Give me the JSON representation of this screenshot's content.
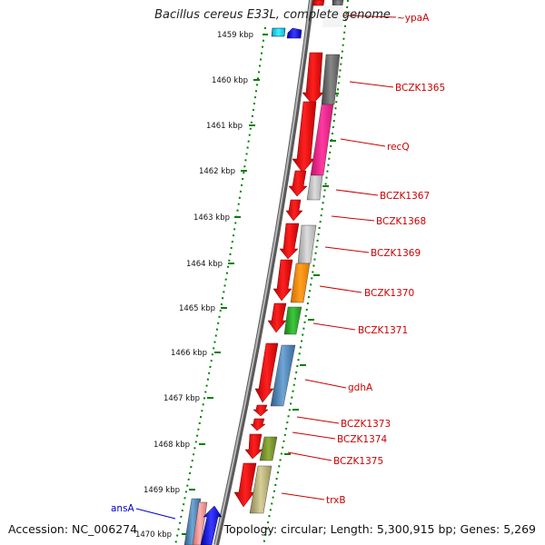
{
  "title": "Bacillus cereus E33L, complete genome",
  "accession": "Accession: NC_006274",
  "topology": "Topology: circular; Length: 5,300,915 bp; Genes: 5,269",
  "kbp_ticks": [
    "1459 kbp",
    "1460 kbp",
    "1461 kbp",
    "1462 kbp",
    "1463 kbp",
    "1464 kbp",
    "1465 kbp",
    "1466 kbp",
    "1467 kbp",
    "1468 kbp",
    "1469 kbp",
    "1470 kbp"
  ],
  "gene_labels": [
    "~ypaA",
    "BCZK1365",
    "recQ",
    "BCZK1367",
    "BCZK1368",
    "BCZK1369",
    "BCZK1370",
    "BCZK1371",
    "gdhA",
    "BCZK1373",
    "BCZK1374",
    "BCZK1375",
    "trxB"
  ],
  "left_gene_labels": [
    "ansA"
  ],
  "colors": {
    "forward_gene": "#ff0000",
    "reverse_gene": "#0000ff",
    "gene_label": "#cc0000",
    "left_label": "#0000cc",
    "ruler_dots": "#008000",
    "backbone": "#808080"
  }
}
